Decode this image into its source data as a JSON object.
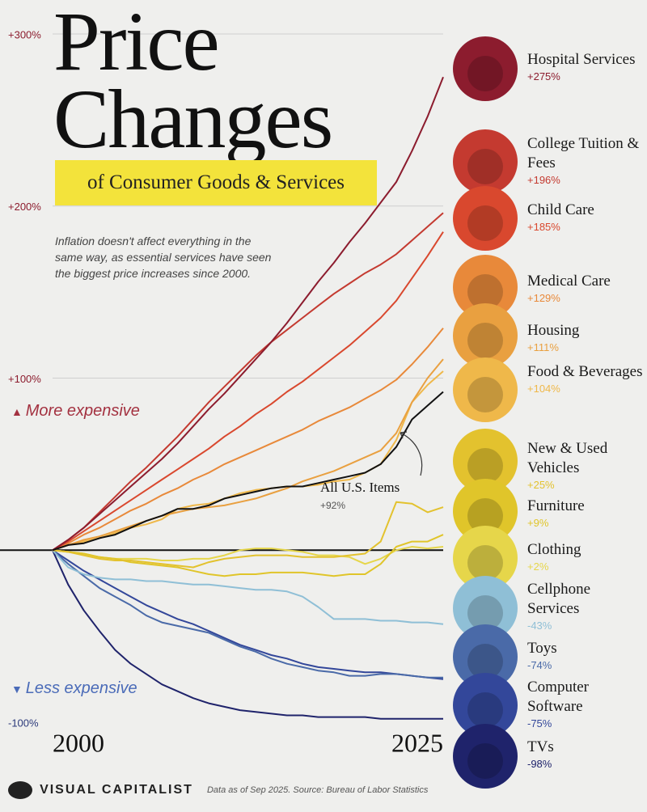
{
  "chart_data": {
    "type": "line",
    "title": "Price Changes",
    "subtitle": "of Consumer Goods & Services",
    "description": "Inflation doesn't affect everything in the same way, as essential services have seen the biggest price increases since 2000.",
    "annotations": {
      "more": "More expensive",
      "less": "Less expensive"
    },
    "source": "Data as of Sep 2025. Source: Bureau of Labor Statistics",
    "brand": "VISUAL CAPITALIST",
    "x": [
      2000,
      2001,
      2002,
      2003,
      2004,
      2005,
      2006,
      2007,
      2008,
      2009,
      2010,
      2011,
      2012,
      2013,
      2014,
      2015,
      2016,
      2017,
      2018,
      2019,
      2020,
      2021,
      2022,
      2023,
      2024,
      2025
    ],
    "xlim": [
      2000,
      2025
    ],
    "xticks": [
      2000,
      2025
    ],
    "ylim": [
      -100,
      300
    ],
    "yticks": [
      {
        "value": 300,
        "label": "+300%"
      },
      {
        "value": 200,
        "label": "+200%"
      },
      {
        "value": 100,
        "label": "+100%"
      },
      {
        "value": -100,
        "label": "-100%"
      }
    ],
    "grid": true,
    "series": [
      {
        "name": "Hospital Services",
        "color": "#8c1c2e",
        "values": [
          0,
          6,
          13,
          21,
          29,
          37,
          45,
          53,
          62,
          72,
          82,
          91,
          101,
          111,
          121,
          132,
          144,
          156,
          167,
          179,
          190,
          202,
          214,
          232,
          252,
          275
        ],
        "value_labels": [
          null,
          null,
          null,
          null,
          null,
          null,
          null,
          null,
          null,
          null,
          null,
          null,
          null,
          null,
          null,
          null,
          null,
          null,
          null,
          null,
          null,
          null,
          null,
          null,
          null,
          "+275%"
        ]
      },
      {
        "name": "College Tuition & Fees",
        "color": "#c43a30",
        "values": [
          0,
          6,
          13,
          22,
          31,
          40,
          48,
          57,
          66,
          76,
          86,
          95,
          104,
          113,
          121,
          128,
          135,
          142,
          149,
          155,
          161,
          166,
          172,
          180,
          188,
          196
        ],
        "value_labels": [
          null,
          null,
          null,
          null,
          null,
          null,
          null,
          null,
          null,
          null,
          null,
          null,
          null,
          null,
          null,
          null,
          null,
          null,
          null,
          null,
          null,
          null,
          null,
          null,
          null,
          "+196%"
        ]
      },
      {
        "name": "Child Care",
        "color": "#d9482e",
        "values": [
          0,
          5,
          11,
          17,
          23,
          29,
          35,
          41,
          47,
          53,
          59,
          66,
          72,
          79,
          85,
          92,
          98,
          105,
          112,
          119,
          127,
          135,
          145,
          158,
          171,
          185
        ],
        "value_labels": [
          null,
          null,
          null,
          null,
          null,
          null,
          null,
          null,
          null,
          null,
          null,
          null,
          null,
          null,
          null,
          null,
          null,
          null,
          null,
          null,
          null,
          null,
          null,
          null,
          null,
          "+185%"
        ]
      },
      {
        "name": "Medical Care",
        "color": "#e8893a",
        "values": [
          0,
          4,
          9,
          13,
          18,
          23,
          27,
          32,
          36,
          41,
          45,
          50,
          54,
          58,
          62,
          66,
          70,
          75,
          79,
          83,
          88,
          93,
          99,
          108,
          118,
          129
        ],
        "value_labels": [
          null,
          null,
          null,
          null,
          null,
          null,
          null,
          null,
          null,
          null,
          null,
          null,
          null,
          null,
          null,
          null,
          null,
          null,
          null,
          null,
          null,
          null,
          null,
          null,
          null,
          "+129%"
        ]
      },
      {
        "name": "Housing",
        "color": "#e9a040",
        "values": [
          0,
          3,
          6,
          8,
          11,
          14,
          17,
          20,
          22,
          24,
          25,
          26,
          28,
          30,
          33,
          36,
          40,
          43,
          46,
          50,
          54,
          58,
          68,
          86,
          100,
          111
        ],
        "value_labels": [
          null,
          null,
          null,
          null,
          null,
          null,
          null,
          null,
          null,
          null,
          null,
          null,
          null,
          null,
          null,
          null,
          null,
          null,
          null,
          null,
          null,
          null,
          null,
          null,
          null,
          "+111%"
        ]
      },
      {
        "name": "Food & Beverages",
        "color": "#efb84a",
        "values": [
          0,
          3,
          5,
          7,
          10,
          13,
          15,
          18,
          24,
          26,
          27,
          30,
          33,
          35,
          36,
          37,
          37,
          38,
          40,
          41,
          45,
          50,
          64,
          86,
          96,
          104
        ],
        "value_labels": [
          null,
          null,
          null,
          null,
          null,
          null,
          null,
          null,
          null,
          null,
          null,
          null,
          null,
          null,
          null,
          null,
          null,
          null,
          null,
          null,
          null,
          null,
          null,
          null,
          null,
          "+104%"
        ]
      },
      {
        "name": "All U.S. Items",
        "color": "#111111",
        "values": [
          0,
          3,
          4,
          7,
          9,
          13,
          17,
          20,
          24,
          24,
          26,
          30,
          32,
          34,
          36,
          37,
          37,
          39,
          41,
          43,
          45,
          50,
          60,
          76,
          84,
          92
        ],
        "value_labels": [
          null,
          null,
          null,
          null,
          null,
          null,
          null,
          null,
          null,
          null,
          null,
          null,
          null,
          null,
          null,
          null,
          null,
          null,
          null,
          null,
          null,
          null,
          null,
          null,
          null,
          "+92%"
        ]
      },
      {
        "name": "New & Used Vehicles",
        "color": "#e3c22e",
        "values": [
          0,
          -1,
          -3,
          -5,
          -6,
          -6,
          -7,
          -8,
          -9,
          -10,
          -7,
          -5,
          -4,
          -3,
          -3,
          -3,
          -4,
          -4,
          -4,
          -3,
          -2,
          5,
          28,
          27,
          22,
          25
        ],
        "value_labels": [
          null,
          null,
          null,
          null,
          null,
          null,
          null,
          null,
          null,
          null,
          null,
          null,
          null,
          null,
          null,
          null,
          null,
          null,
          null,
          null,
          null,
          null,
          null,
          null,
          null,
          "+25%"
        ]
      },
      {
        "name": "Furniture",
        "color": "#e0c52a",
        "values": [
          0,
          -1,
          -2,
          -4,
          -5,
          -7,
          -8,
          -9,
          -10,
          -12,
          -14,
          -15,
          -14,
          -14,
          -13,
          -13,
          -13,
          -14,
          -15,
          -14,
          -14,
          -8,
          2,
          5,
          5,
          9
        ],
        "value_labels": [
          null,
          null,
          null,
          null,
          null,
          null,
          null,
          null,
          null,
          null,
          null,
          null,
          null,
          null,
          null,
          null,
          null,
          null,
          null,
          null,
          null,
          null,
          null,
          null,
          null,
          "+9%"
        ]
      },
      {
        "name": "Clothing",
        "color": "#e6d64a",
        "values": [
          0,
          -1,
          -2,
          -4,
          -5,
          -5,
          -5,
          -6,
          -6,
          -5,
          -5,
          -3,
          0,
          1,
          1,
          0,
          -1,
          -3,
          -3,
          -4,
          -8,
          -5,
          0,
          2,
          1,
          2
        ],
        "value_labels": [
          null,
          null,
          null,
          null,
          null,
          null,
          null,
          null,
          null,
          null,
          null,
          null,
          null,
          null,
          null,
          null,
          null,
          null,
          null,
          null,
          null,
          null,
          null,
          null,
          null,
          "+2%"
        ]
      },
      {
        "name": "Cellphone Services",
        "color": "#8fbfd6",
        "values": [
          0,
          -10,
          -14,
          -16,
          -17,
          -17,
          -18,
          -18,
          -19,
          -20,
          -20,
          -21,
          -22,
          -23,
          -23,
          -24,
          -27,
          -33,
          -40,
          -40,
          -40,
          -41,
          -41,
          -42,
          -42,
          -43
        ],
        "value_labels": [
          null,
          null,
          null,
          null,
          null,
          null,
          null,
          null,
          null,
          null,
          null,
          null,
          null,
          null,
          null,
          null,
          null,
          null,
          null,
          null,
          null,
          null,
          null,
          null,
          null,
          "-43%"
        ]
      },
      {
        "name": "Toys",
        "color": "#4a6aa8",
        "values": [
          0,
          -8,
          -15,
          -22,
          -27,
          -32,
          -38,
          -42,
          -44,
          -46,
          -48,
          -52,
          -56,
          -59,
          -63,
          -66,
          -68,
          -70,
          -71,
          -73,
          -73,
          -72,
          -72,
          -73,
          -74,
          -74
        ],
        "value_labels": [
          null,
          null,
          null,
          null,
          null,
          null,
          null,
          null,
          null,
          null,
          null,
          null,
          null,
          null,
          null,
          null,
          null,
          null,
          null,
          null,
          null,
          null,
          null,
          null,
          null,
          "-74%"
        ]
      },
      {
        "name": "Computer Software",
        "color": "#33479a",
        "values": [
          0,
          -6,
          -12,
          -17,
          -22,
          -27,
          -32,
          -36,
          -40,
          -43,
          -47,
          -51,
          -55,
          -58,
          -61,
          -63,
          -66,
          -68,
          -69,
          -70,
          -71,
          -71,
          -72,
          -73,
          -74,
          -75
        ],
        "value_labels": [
          null,
          null,
          null,
          null,
          null,
          null,
          null,
          null,
          null,
          null,
          null,
          null,
          null,
          null,
          null,
          null,
          null,
          null,
          null,
          null,
          null,
          null,
          null,
          null,
          null,
          "-75%"
        ]
      },
      {
        "name": "TVs",
        "color": "#1f236b",
        "values": [
          0,
          -20,
          -35,
          -47,
          -58,
          -66,
          -72,
          -78,
          -82,
          -86,
          -89,
          -91,
          -93,
          -94,
          -95,
          -96,
          -96,
          -97,
          -97,
          -97,
          -97,
          -98,
          -98,
          -98,
          -98,
          -98
        ],
        "value_labels": [
          null,
          null,
          null,
          null,
          null,
          null,
          null,
          null,
          null,
          null,
          null,
          null,
          null,
          null,
          null,
          null,
          null,
          null,
          null,
          null,
          null,
          null,
          null,
          null,
          null,
          "-98%"
        ]
      }
    ]
  }
}
